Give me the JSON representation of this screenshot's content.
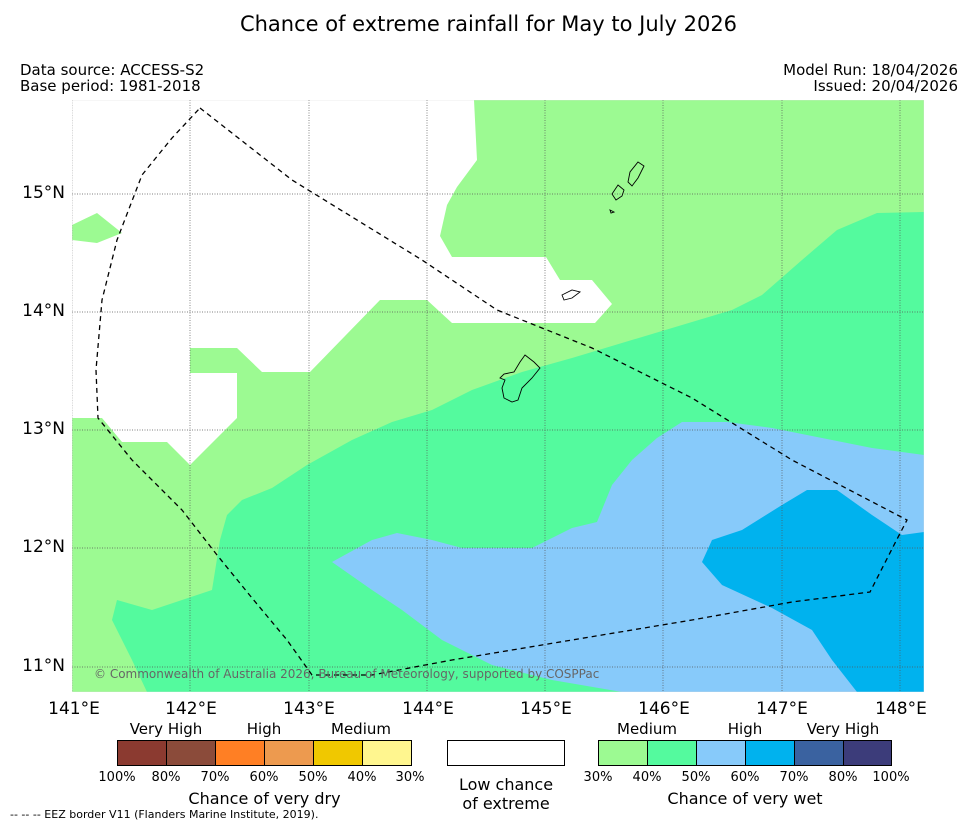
{
  "title": "Chance of extreme rainfall for May to July 2026",
  "meta": {
    "data_source": "Data source: ACCESS-S2",
    "base_period": "Base period: 1981-2018",
    "model_run": "Model Run: 18/04/2026",
    "issued": "Issued: 20/04/2026"
  },
  "map": {
    "lat_labels": [
      "15°N",
      "14°N",
      "13°N",
      "12°N",
      "11°N"
    ],
    "lon_labels": [
      "141°E",
      "142°E",
      "143°E",
      "144°E",
      "145°E",
      "146°E",
      "147°E",
      "148°E"
    ],
    "credit": "© Commonwealth of Australia 2026, Bureau of Meteorology, supported by COSPPac",
    "colors": {
      "medium_wet": "#9cfa92",
      "high_40_50": "#54fa9e",
      "high_50_60": "#87cafa",
      "very_high_60_70": "#00b2ee"
    }
  },
  "legend_dry": {
    "categories": [
      "Very High",
      "High",
      "Medium"
    ],
    "percent_labels": [
      "100%",
      "80%",
      "70%",
      "60%",
      "50%",
      "40%",
      "30%"
    ],
    "caption": "Chance of very dry",
    "colors": [
      "#8b3a30",
      "#8b4b3a",
      "#ff7f24",
      "#ed9a4f",
      "#f0c800",
      "#fff68f"
    ]
  },
  "legend_low": {
    "caption_line1": "Low chance",
    "caption_line2": "of extreme"
  },
  "legend_wet": {
    "categories": [
      "Medium",
      "High",
      "Very High"
    ],
    "percent_labels": [
      "30%",
      "40%",
      "50%",
      "60%",
      "70%",
      "80%",
      "100%"
    ],
    "caption": "Chance of very wet",
    "colors": [
      "#9cfa92",
      "#54fa9e",
      "#87cafa",
      "#00b2ee",
      "#3a62a0",
      "#3c3c7a"
    ]
  },
  "footer": "--  --  -- EEZ border V11 (Flanders Marine Institute, 2019)."
}
